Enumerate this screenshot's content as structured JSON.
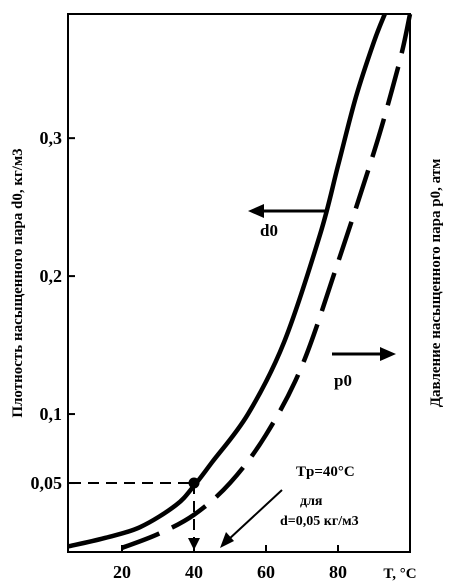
{
  "chart_data": {
    "type": "line",
    "ylabel_left": "Плотность насыщенного пара d0, кг/м3",
    "ylabel_right": "Давление насыщенного пара p0, атм",
    "xlabel": "T, °C",
    "x_ticks": [
      20,
      40,
      60,
      80
    ],
    "y_ticks": [
      {
        "value": 0.05,
        "label": "0,05"
      },
      {
        "value": 0.1,
        "label": "0,1"
      },
      {
        "value": 0.2,
        "label": "0,2"
      },
      {
        "value": 0.3,
        "label": "0,3"
      }
    ],
    "xlim": [
      5,
      100
    ],
    "ylim": [
      0,
      0.39
    ],
    "grid": false,
    "series": [
      {
        "name": "d0",
        "style": "solid",
        "x": [
          5,
          15,
          25,
          35,
          40,
          45,
          55,
          65,
          75,
          80,
          85,
          90,
          93
        ],
        "values": [
          0.004,
          0.01,
          0.018,
          0.034,
          0.048,
          0.065,
          0.1,
          0.152,
          0.23,
          0.28,
          0.33,
          0.37,
          0.39
        ]
      },
      {
        "name": "p0",
        "style": "dashed",
        "x": [
          20,
          30,
          40,
          50,
          60,
          70,
          80,
          90,
          95,
          98,
          100
        ],
        "values": [
          0.003,
          0.013,
          0.027,
          0.05,
          0.085,
          0.135,
          0.21,
          0.29,
          0.335,
          0.365,
          0.39
        ]
      }
    ],
    "annotations": {
      "d0_label": "d0",
      "p0_label": "p0",
      "tp_label": "Tр=40°C",
      "for_label": "для",
      "density_label": "d=0,05 кг/м3",
      "marker_x": 40,
      "marker_y": 0.05
    }
  }
}
